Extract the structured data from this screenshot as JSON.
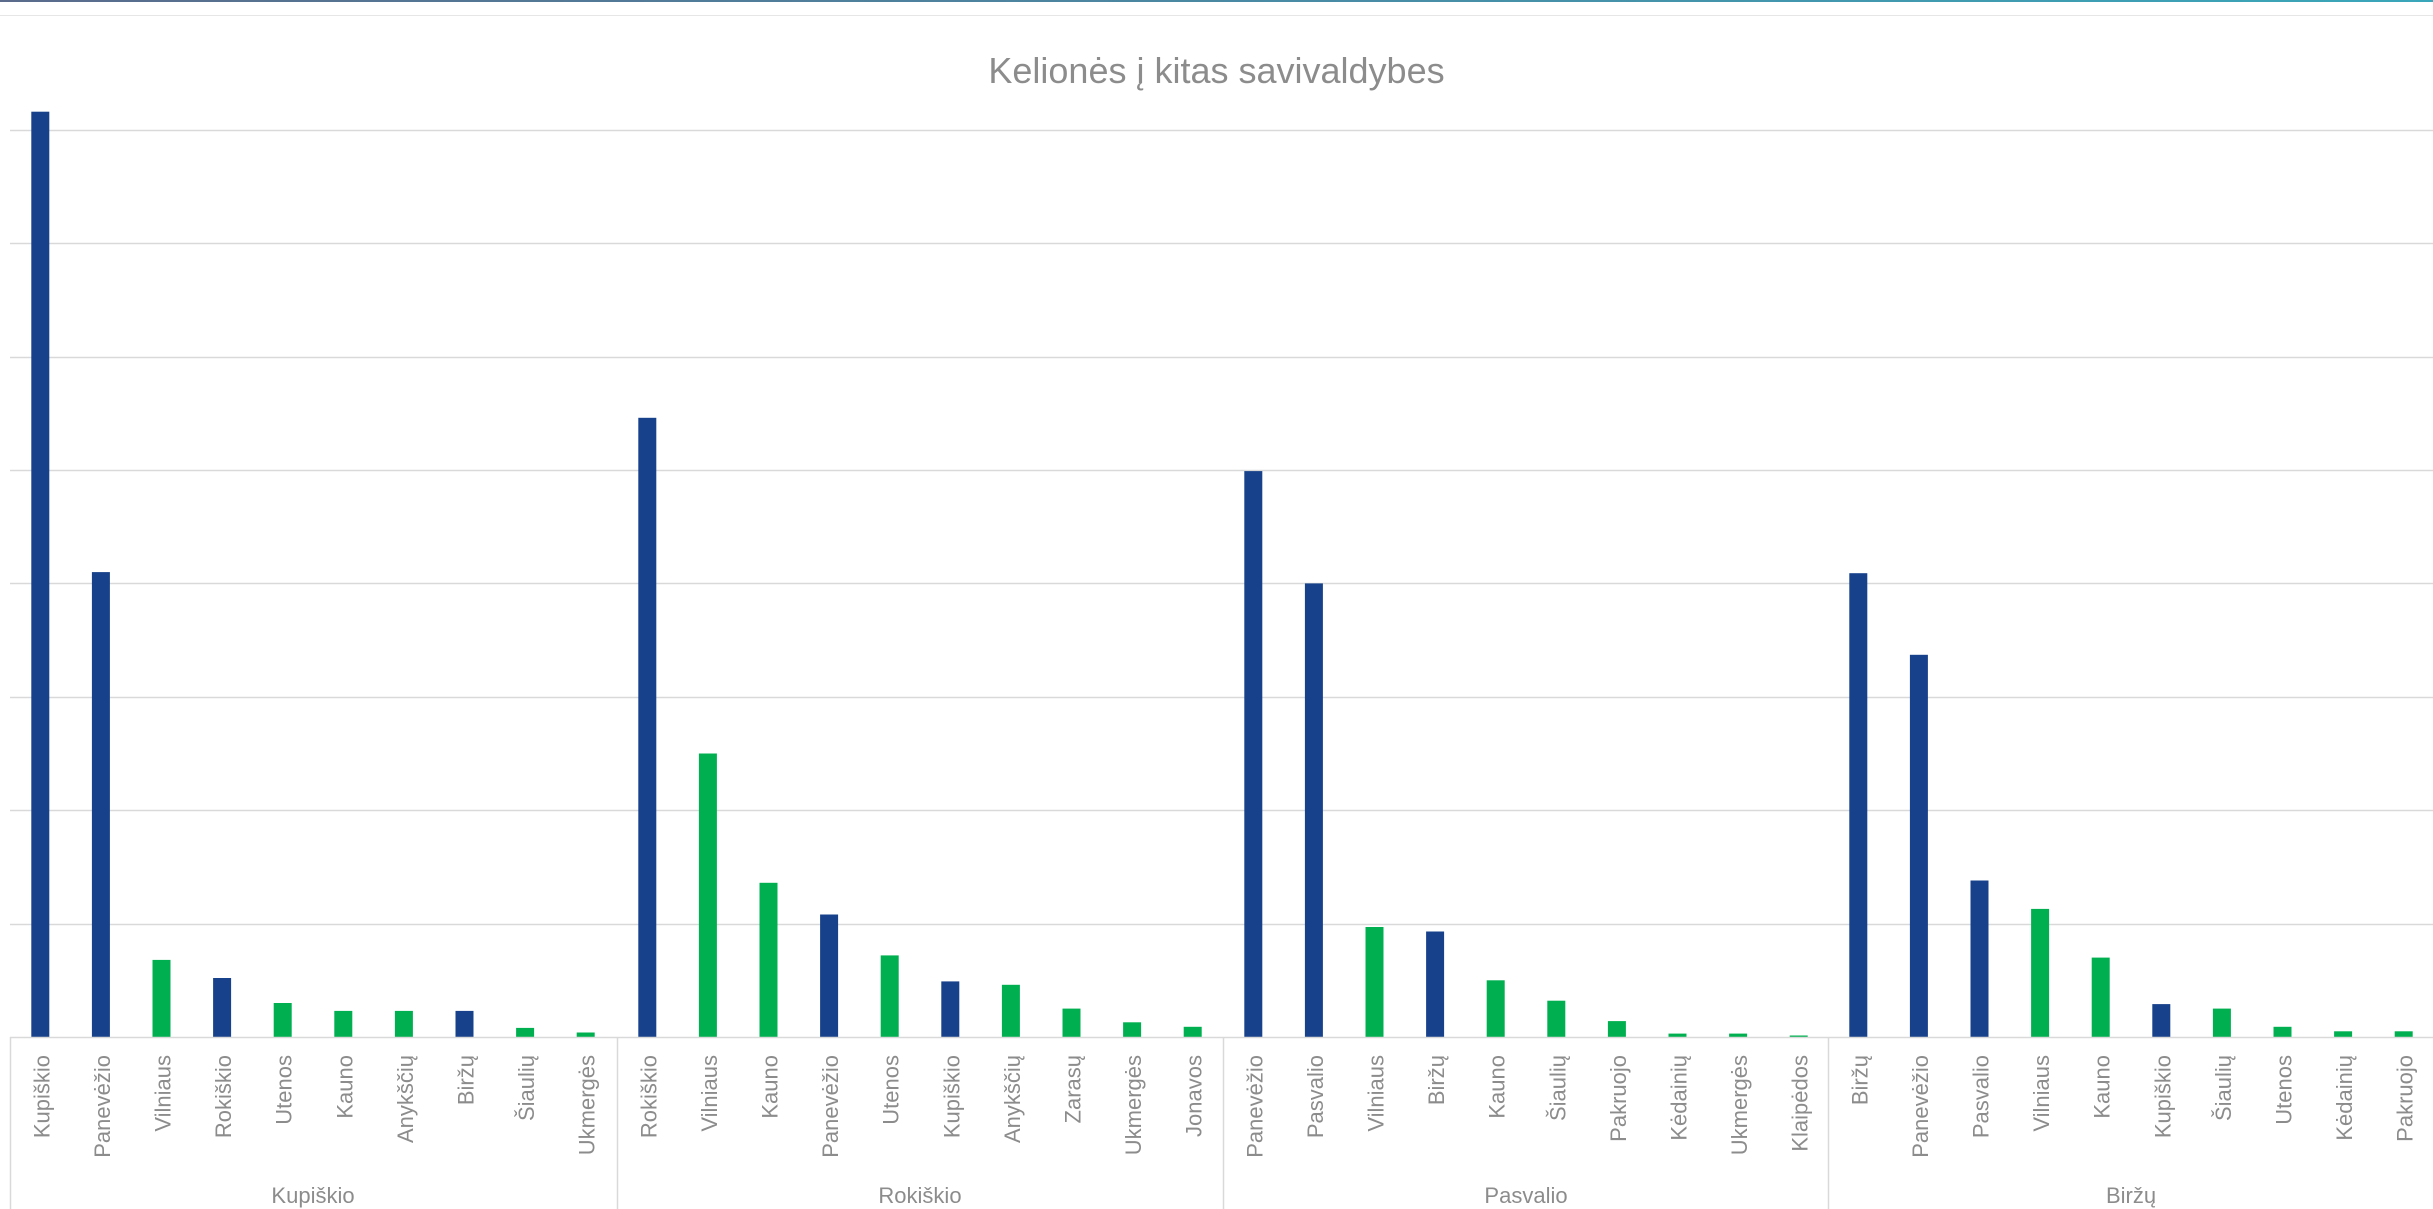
{
  "chart_data": {
    "type": "bar",
    "title": "Kelionės į kitas savivaldybes",
    "xlabel": "",
    "ylabel": "",
    "ylim": [
      0,
      8.2
    ],
    "y_gridline_step": 1,
    "y_axis_labels_visible": false,
    "legend": "none",
    "colors": {
      "dark": "#17418b",
      "green": "#00b050"
    },
    "groups": [
      {
        "name": "Kupiškio",
        "bars": [
          {
            "label": "Kupiškio",
            "value": 8.16,
            "color": "dark"
          },
          {
            "label": "Panevėžio",
            "value": 4.1,
            "color": "dark"
          },
          {
            "label": "Vilniaus",
            "value": 0.68,
            "color": "green"
          },
          {
            "label": "Rokiškio",
            "value": 0.52,
            "color": "dark"
          },
          {
            "label": "Utenos",
            "value": 0.3,
            "color": "green"
          },
          {
            "label": "Kauno",
            "value": 0.23,
            "color": "green"
          },
          {
            "label": "Anykščių",
            "value": 0.23,
            "color": "green"
          },
          {
            "label": "Biržų",
            "value": 0.23,
            "color": "dark"
          },
          {
            "label": "Šiaulių",
            "value": 0.08,
            "color": "green"
          },
          {
            "label": "Ukmergės",
            "value": 0.04,
            "color": "green"
          }
        ]
      },
      {
        "name": "Rokiškio",
        "bars": [
          {
            "label": "Rokiškio",
            "value": 5.46,
            "color": "dark"
          },
          {
            "label": "Vilniaus",
            "value": 2.5,
            "color": "green"
          },
          {
            "label": "Kauno",
            "value": 1.36,
            "color": "green"
          },
          {
            "label": "Panevėžio",
            "value": 1.08,
            "color": "dark"
          },
          {
            "label": "Utenos",
            "value": 0.72,
            "color": "green"
          },
          {
            "label": "Kupiškio",
            "value": 0.49,
            "color": "dark"
          },
          {
            "label": "Anykščių",
            "value": 0.46,
            "color": "green"
          },
          {
            "label": "Zarasų",
            "value": 0.25,
            "color": "green"
          },
          {
            "label": "Ukmergės",
            "value": 0.13,
            "color": "green"
          },
          {
            "label": "Jonavos",
            "value": 0.09,
            "color": "green"
          }
        ]
      },
      {
        "name": "Pasvalio",
        "bars": [
          {
            "label": "Panevėžio",
            "value": 4.99,
            "color": "dark"
          },
          {
            "label": "Pasvalio",
            "value": 4.0,
            "color": "dark"
          },
          {
            "label": "Vilniaus",
            "value": 0.97,
            "color": "green"
          },
          {
            "label": "Biržų",
            "value": 0.93,
            "color": "dark"
          },
          {
            "label": "Kauno",
            "value": 0.5,
            "color": "green"
          },
          {
            "label": "Šiaulių",
            "value": 0.32,
            "color": "green"
          },
          {
            "label": "Pakruojo",
            "value": 0.14,
            "color": "green"
          },
          {
            "label": "Kėdainių",
            "value": 0.03,
            "color": "green"
          },
          {
            "label": "Ukmergės",
            "value": 0.03,
            "color": "green"
          },
          {
            "label": "Klaipėdos",
            "value": 0.01,
            "color": "green"
          }
        ]
      },
      {
        "name": "Biržų",
        "bars": [
          {
            "label": "Biržų",
            "value": 4.09,
            "color": "dark"
          },
          {
            "label": "Panevėžio",
            "value": 3.37,
            "color": "dark"
          },
          {
            "label": "Pasvalio",
            "value": 1.38,
            "color": "dark"
          },
          {
            "label": "Vilniaus",
            "value": 1.13,
            "color": "green"
          },
          {
            "label": "Kauno",
            "value": 0.7,
            "color": "green"
          },
          {
            "label": "Kupiškio",
            "value": 0.29,
            "color": "dark"
          },
          {
            "label": "Šiaulių",
            "value": 0.25,
            "color": "green"
          },
          {
            "label": "Utenos",
            "value": 0.09,
            "color": "green"
          },
          {
            "label": "Kėdainių",
            "value": 0.05,
            "color": "green"
          },
          {
            "label": "Pakruojo",
            "value": 0.05,
            "color": "green"
          }
        ]
      }
    ]
  }
}
